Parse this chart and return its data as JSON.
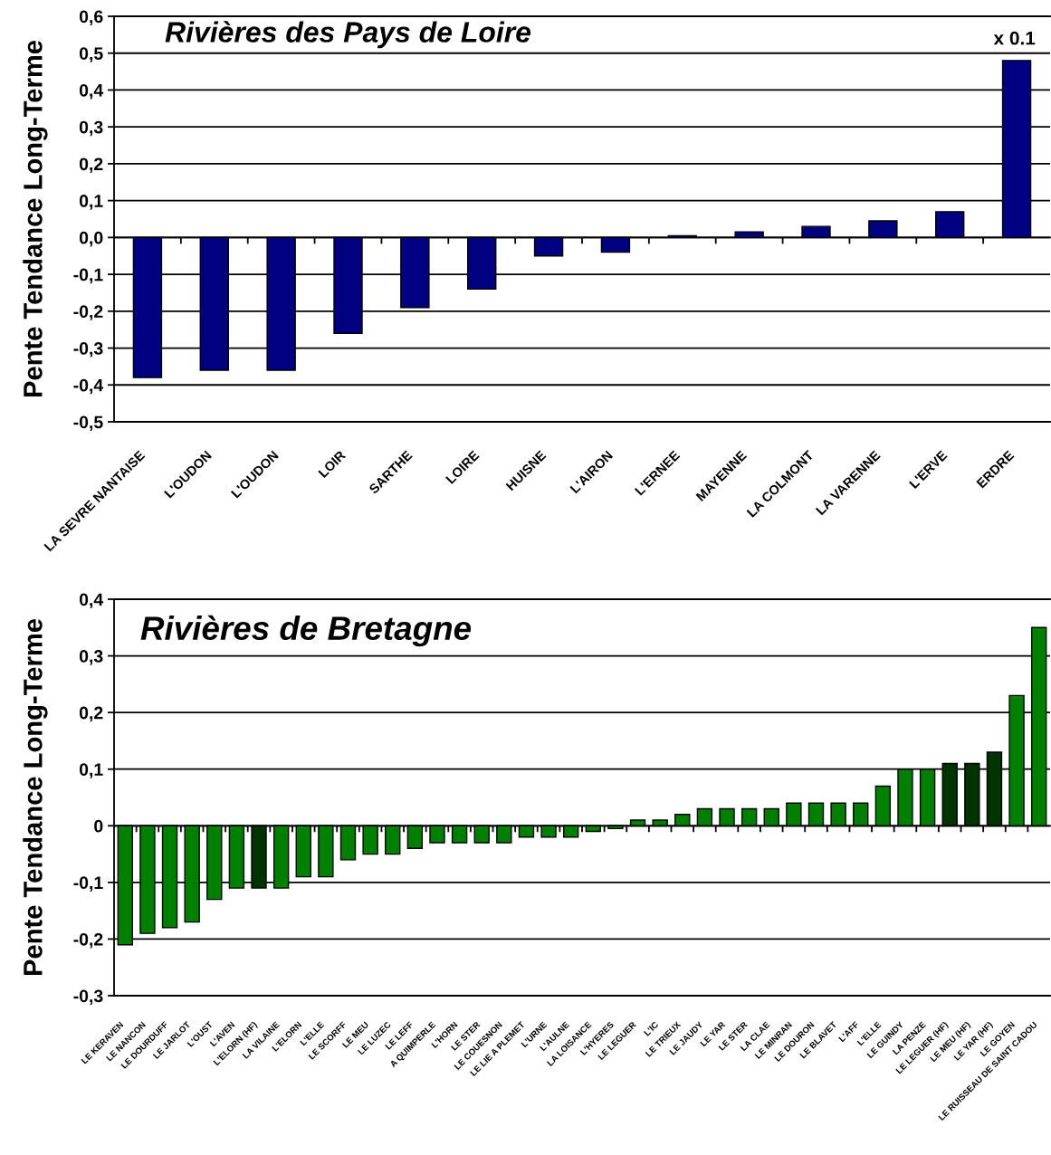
{
  "chart_data": [
    {
      "type": "bar",
      "title": "Rivières des Pays de Loire",
      "ylabel": "Pente Tendance Long-Terme",
      "categories": [
        "LA SEVRE NANTAISE",
        "L'OUDON",
        "L'OUDON",
        "LOIR",
        "SARTHE",
        "LOIRE",
        "HUISNE",
        "L'AIRON",
        "L'ERNEE",
        "MAYENNE",
        "LA COLMONT",
        "LA VARENNE",
        "L'ERVE",
        "ERDRE"
      ],
      "values": [
        -0.38,
        -0.36,
        -0.36,
        -0.26,
        -0.19,
        -0.14,
        -0.05,
        -0.04,
        0.005,
        0.015,
        0.03,
        0.045,
        0.07,
        0.48
      ],
      "color": "#000080",
      "ylim": [
        -0.5,
        0.6
      ],
      "yticks": [
        {
          "value": -0.5,
          "label": "-0,5"
        },
        {
          "value": -0.4,
          "label": "-0,4"
        },
        {
          "value": -0.3,
          "label": "-0,3"
        },
        {
          "value": -0.2,
          "label": "-0,2"
        },
        {
          "value": -0.1,
          "label": "-0,1"
        },
        {
          "value": 0.0,
          "label": "0,0"
        },
        {
          "value": 0.1,
          "label": "0,1"
        },
        {
          "value": 0.2,
          "label": "0,2"
        },
        {
          "value": 0.3,
          "label": "0,3"
        },
        {
          "value": 0.4,
          "label": "0,4"
        },
        {
          "value": 0.5,
          "label": "0,5"
        },
        {
          "value": 0.6,
          "label": "0,6"
        }
      ],
      "grid": "y",
      "annotations": [
        "x 0.1"
      ]
    },
    {
      "type": "bar",
      "title": "Rivières de Bretagne",
      "ylabel": "Pente Tendance Long-Terme",
      "categories": [
        "LE KERAVEN",
        "LE NANCON",
        "LE DOURDUFF",
        "LE JARLOT",
        "L'OUST",
        "L'AVEN",
        "L'ELORN (HF)",
        "LA VILAINE",
        "L'ELORN",
        "L'ELLE",
        "LE SCORFF",
        "LE MEU",
        "LE LUZEC",
        "LE LEFF",
        "A QUIMPERLE",
        "L'HORN",
        "LE STER",
        "LE COUESNON",
        "LE LIE A PLEMET",
        "L'URNE",
        "L'AULNE",
        "LA LOISANCE",
        "L'HYERES",
        "LE LEGUER",
        "L'IC",
        "LE TRIEUX",
        "LE JAUDY",
        "LE YAR",
        "LE STER",
        "LA CLAE",
        "LE MINRAN",
        "LE DOURON",
        "LE BLAVET",
        "L'AFF",
        "L'ELLE",
        "LE GUINDY",
        "LA PENZE",
        "LE LEGUER (HF)",
        "LE MEU (HF)",
        "LE YAR (HF)",
        "LE GOYEN",
        "LE RUISSEAU DE SAINT CADOU"
      ],
      "values": [
        -0.21,
        -0.19,
        -0.18,
        -0.17,
        -0.13,
        -0.11,
        -0.11,
        -0.11,
        -0.09,
        -0.09,
        -0.06,
        -0.05,
        -0.05,
        -0.04,
        -0.03,
        -0.03,
        -0.03,
        -0.03,
        -0.02,
        -0.02,
        -0.02,
        -0.01,
        -0.005,
        0.01,
        0.01,
        0.02,
        0.03,
        0.03,
        0.03,
        0.03,
        0.04,
        0.04,
        0.04,
        0.04,
        0.07,
        0.1,
        0.1,
        0.11,
        0.11,
        0.13,
        0.23,
        0.35
      ],
      "colors": [
        "#008000",
        "#008000",
        "#008000",
        "#008000",
        "#008000",
        "#008000",
        "#003300",
        "#008000",
        "#008000",
        "#008000",
        "#008000",
        "#008000",
        "#008000",
        "#008000",
        "#008000",
        "#008000",
        "#008000",
        "#008000",
        "#008000",
        "#008000",
        "#008000",
        "#008000",
        "#008000",
        "#008000",
        "#008000",
        "#008000",
        "#008000",
        "#008000",
        "#008000",
        "#008000",
        "#008000",
        "#008000",
        "#008000",
        "#008000",
        "#008000",
        "#008000",
        "#008000",
        "#003300",
        "#003300",
        "#003300",
        "#008000",
        "#008000"
      ],
      "ylim": [
        -0.3,
        0.4
      ],
      "yticks": [
        {
          "value": -0.3,
          "label": "-0,3"
        },
        {
          "value": -0.2,
          "label": "-0,2"
        },
        {
          "value": -0.1,
          "label": "-0,1"
        },
        0,
        {
          "value": 0.1,
          "label": "0,1"
        },
        {
          "value": 0.2,
          "label": "0,2"
        },
        {
          "value": 0.3,
          "label": "0,3"
        },
        {
          "value": 0.4,
          "label": "0,4"
        }
      ],
      "grid": "y"
    }
  ]
}
